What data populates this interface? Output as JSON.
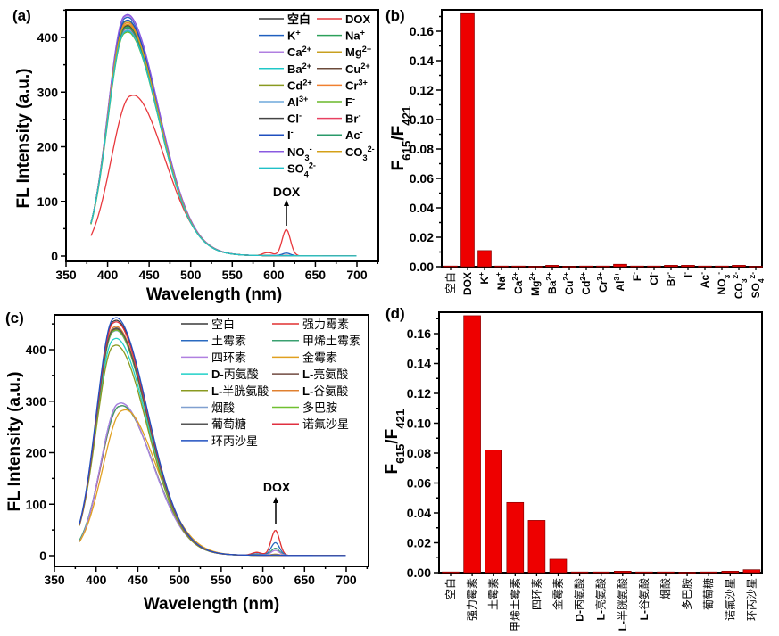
{
  "chart_data": [
    {
      "panel": "(a)",
      "type": "line",
      "xlabel": "Wavelength (nm)",
      "ylabel": "FL Intensity (a.u.)",
      "xlim": [
        350,
        725
      ],
      "ylim": [
        -10,
        460
      ],
      "xticks": [
        "350",
        "400",
        "450",
        "500",
        "550",
        "600",
        "650",
        "700"
      ],
      "yticks": [
        "0",
        "100",
        "200",
        "300",
        "400"
      ],
      "annotation": "DOX",
      "legend_position": "top-right",
      "series": [
        {
          "label": [
            {
              "t": "空白"
            }
          ],
          "color": "#3a3a3a",
          "peak_nm": 421,
          "peak": 421,
          "at380": 60,
          "f615": 0.2
        },
        {
          "label": [
            {
              "t": "DOX"
            }
          ],
          "color": "#e8383d",
          "peak_nm": 428,
          "peak": 293,
          "at380": 37,
          "f615": 48
        },
        {
          "label": [
            {
              "t": "K"
            },
            {
              "sup": "+"
            }
          ],
          "color": "#1f5fbf",
          "peak_nm": 421,
          "peak": 435,
          "at380": 60,
          "f615": 4.7
        },
        {
          "label": [
            {
              "t": "Na"
            },
            {
              "sup": "+"
            }
          ],
          "color": "#2ca05a",
          "peak_nm": 421,
          "peak": 418,
          "at380": 60,
          "f615": 0.2
        },
        {
          "label": [
            {
              "t": "Ca"
            },
            {
              "sup": "2+"
            }
          ],
          "color": "#b07fe0",
          "peak_nm": 421,
          "peak": 438,
          "at380": 60,
          "f615": 0.2
        },
        {
          "label": [
            {
              "t": "Mg"
            },
            {
              "sup": "2+"
            }
          ],
          "color": "#c8a020",
          "peak_nm": 421,
          "peak": 425,
          "at380": 60,
          "f615": 0.1
        },
        {
          "label": [
            {
              "t": "Ba"
            },
            {
              "sup": "2+"
            }
          ],
          "color": "#20c8c8",
          "peak_nm": 421,
          "peak": 410,
          "at380": 60,
          "f615": 0.4
        },
        {
          "label": [
            {
              "t": "Cu"
            },
            {
              "sup": "2+"
            }
          ],
          "color": "#6b4a3a",
          "peak_nm": 421,
          "peak": 420,
          "at380": 60,
          "f615": 0.1
        },
        {
          "label": [
            {
              "t": "Cd"
            },
            {
              "sup": "2+"
            }
          ],
          "color": "#8a9a20",
          "peak_nm": 421,
          "peak": 428,
          "at380": 60,
          "f615": 0.2
        },
        {
          "label": [
            {
              "t": "Cr"
            },
            {
              "sup": "3+"
            }
          ],
          "color": "#f08030",
          "peak_nm": 421,
          "peak": 425,
          "at380": 60,
          "f615": 0.2
        },
        {
          "label": [
            {
              "t": "Al"
            },
            {
              "sup": "3+"
            }
          ],
          "color": "#6fa8dc",
          "peak_nm": 421,
          "peak": 412,
          "at380": 60,
          "f615": 0.7
        },
        {
          "label": [
            {
              "t": "F"
            },
            {
              "sup": "-"
            }
          ],
          "color": "#6ab82a",
          "peak_nm": 421,
          "peak": 408,
          "at380": 58,
          "f615": 0.2
        },
        {
          "label": [
            {
              "t": "Cl"
            },
            {
              "sup": "-"
            }
          ],
          "color": "#444444",
          "peak_nm": 421,
          "peak": 420,
          "at380": 60,
          "f615": 0.2
        },
        {
          "label": [
            {
              "t": "Br"
            },
            {
              "sup": "-"
            }
          ],
          "color": "#e84060",
          "peak_nm": 421,
          "peak": 415,
          "at380": 60,
          "f615": 0.4
        },
        {
          "label": [
            {
              "t": "I"
            },
            {
              "sup": "-"
            }
          ],
          "color": "#1f4fbf",
          "peak_nm": 421,
          "peak": 430,
          "at380": 60,
          "f615": 0.4
        },
        {
          "label": [
            {
              "t": "Ac"
            },
            {
              "sup": "-"
            }
          ],
          "color": "#2a9a6a",
          "peak_nm": 421,
          "peak": 416,
          "at380": 60,
          "f615": 0.2
        },
        {
          "label": [
            {
              "t": "NO"
            },
            {
              "sub": "3"
            },
            {
              "sup": "-"
            }
          ],
          "color": "#8a5ae0",
          "peak_nm": 421,
          "peak": 440,
          "at380": 60,
          "f615": 0.2
        },
        {
          "label": [
            {
              "t": "CO"
            },
            {
              "sub": "3"
            },
            {
              "sup": "2-"
            }
          ],
          "color": "#d4a017",
          "peak_nm": 421,
          "peak": 422,
          "at380": 60,
          "f615": 0.4
        },
        {
          "label": [
            {
              "t": "SO"
            },
            {
              "sub": "4"
            },
            {
              "sup": "2-"
            }
          ],
          "color": "#20c0c8",
          "peak_nm": 421,
          "peak": 410,
          "at380": 60,
          "f615": 0.1
        }
      ]
    },
    {
      "panel": "(b)",
      "type": "bar",
      "ylabel": [
        {
          "t": "F"
        },
        {
          "sub": "615"
        },
        {
          "t": "/F"
        },
        {
          "sub": "421"
        }
      ],
      "ylim": [
        0,
        0.1745
      ],
      "yticks": [
        "0.00",
        "0.02",
        "0.04",
        "0.06",
        "0.08",
        "0.10",
        "0.12",
        "0.14",
        "0.16"
      ],
      "bar_color": "#ee0000",
      "categories": [
        [
          {
            "t": "空白",
            "cjk": true
          }
        ],
        [
          {
            "t": "DOX"
          }
        ],
        [
          {
            "t": "K"
          },
          {
            "sup": "+"
          }
        ],
        [
          {
            "t": "Na"
          },
          {
            "sup": "+"
          }
        ],
        [
          {
            "t": "Ca"
          },
          {
            "sup": "2+"
          }
        ],
        [
          {
            "t": "Mg"
          },
          {
            "sup": "2+"
          }
        ],
        [
          {
            "t": "Ba"
          },
          {
            "sup": "2+"
          }
        ],
        [
          {
            "t": "Cu"
          },
          {
            "sup": "2+"
          }
        ],
        [
          {
            "t": "Cd"
          },
          {
            "sup": "2+"
          }
        ],
        [
          {
            "t": "Cr"
          },
          {
            "sup": "3+"
          }
        ],
        [
          {
            "t": "Al"
          },
          {
            "sup": "3+"
          }
        ],
        [
          {
            "t": "F"
          },
          {
            "sup": "-"
          }
        ],
        [
          {
            "t": "Cl"
          },
          {
            "sup": "-"
          }
        ],
        [
          {
            "t": "Br"
          },
          {
            "sup": "-"
          }
        ],
        [
          {
            "t": "I"
          },
          {
            "sup": "-"
          }
        ],
        [
          {
            "t": "Ac"
          },
          {
            "sup": "-"
          }
        ],
        [
          {
            "t": "NO"
          },
          {
            "sub": "3"
          },
          {
            "sup": "-"
          }
        ],
        [
          {
            "t": "CO"
          },
          {
            "sub": "3"
          },
          {
            "sup": "2-"
          }
        ],
        [
          {
            "t": "SO"
          },
          {
            "sub": "4"
          },
          {
            "sup": "2-"
          }
        ]
      ],
      "values": [
        0.0005,
        0.172,
        0.011,
        0.0005,
        0.0005,
        0.0003,
        0.001,
        0.0003,
        0.0005,
        0.0005,
        0.0017,
        0.0005,
        0.0005,
        0.001,
        0.001,
        0.0005,
        0.0005,
        0.001,
        0.0003
      ]
    },
    {
      "panel": "(c)",
      "type": "line",
      "xlabel": "Wavelength (nm)",
      "ylabel": "FL Intensity (a.u.)",
      "xlim": [
        350,
        740
      ],
      "ylim": [
        -20,
        470
      ],
      "xticks": [
        "350",
        "400",
        "450",
        "500",
        "550",
        "600",
        "650",
        "700"
      ],
      "yticks": [
        "0",
        "100",
        "200",
        "300",
        "400"
      ],
      "annotation": "DOX",
      "legend_position": "top-right",
      "series": [
        {
          "label": [
            {
              "t": "空白",
              "cjk": true
            }
          ],
          "color": "#3a3a3a",
          "peak_nm": 421,
          "peak": 455,
          "at380": 60,
          "f615": 0.3
        },
        {
          "label": [
            {
              "t": "强力霉素",
              "cjk": true
            }
          ],
          "color": "#e03030",
          "peak_nm": 428,
          "peak": 290,
          "at380": 28,
          "f615": 49
        },
        {
          "label": [
            {
              "t": "土霉素",
              "cjk": true
            }
          ],
          "color": "#2a6ac0",
          "peak_nm": 427,
          "peak": 295,
          "at380": 27,
          "f615": 25
        },
        {
          "label": [
            {
              "t": "甲烯土霉素",
              "cjk": true
            }
          ],
          "color": "#3aa070",
          "peak_nm": 428,
          "peak": 290,
          "at380": 30,
          "f615": 14
        },
        {
          "label": [
            {
              "t": "四环素",
              "cjk": true
            }
          ],
          "color": "#b080e0",
          "peak_nm": 427,
          "peak": 295,
          "at380": 27,
          "f615": 10
        },
        {
          "label": [
            {
              "t": "金霉素",
              "cjk": true
            }
          ],
          "color": "#e0a020",
          "peak_nm": 432,
          "peak": 282,
          "at380": 27,
          "f615": 2.5
        },
        {
          "label": [
            {
              "t": "D-",
              "lat": true
            },
            {
              "t": "丙氨酸",
              "cjk": true
            }
          ],
          "color": "#20d0c8",
          "peak_nm": 421,
          "peak": 420,
          "at380": 60,
          "f615": 0.2
        },
        {
          "label": [
            {
              "t": "L-",
              "lat": true
            },
            {
              "t": "亮氨酸",
              "cjk": true
            }
          ],
          "color": "#704a40",
          "peak_nm": 421,
          "peak": 438,
          "at380": 60,
          "f615": 0.2
        },
        {
          "label": [
            {
              "t": "L-",
              "lat": true
            },
            {
              "t": "半胱氨酸",
              "cjk": true
            }
          ],
          "color": "#8a9a20",
          "peak_nm": 421,
          "peak": 407,
          "at380": 58,
          "f615": 0.4
        },
        {
          "label": [
            {
              "t": "L-",
              "lat": true
            },
            {
              "t": "谷氨酸",
              "cjk": true
            }
          ],
          "color": "#e08030",
          "peak_nm": 421,
          "peak": 443,
          "at380": 60,
          "f615": 0.2
        },
        {
          "label": [
            {
              "t": "烟酸",
              "cjk": true
            }
          ],
          "color": "#80a0d0",
          "peak_nm": 421,
          "peak": 435,
          "at380": 60,
          "f615": 0.2
        },
        {
          "label": [
            {
              "t": "多巴胺",
              "cjk": true
            }
          ],
          "color": "#70c030",
          "peak_nm": 421,
          "peak": 436,
          "at380": 60,
          "f615": 0.1
        },
        {
          "label": [
            {
              "t": "葡萄糖",
              "cjk": true
            }
          ],
          "color": "#555555",
          "peak_nm": 421,
          "peak": 440,
          "at380": 60,
          "f615": 0.2
        },
        {
          "label": [
            {
              "t": "诺氟沙星",
              "cjk": true
            }
          ],
          "color": "#e03040",
          "peak_nm": 421,
          "peak": 452,
          "at380": 60,
          "f615": 0.5
        },
        {
          "label": [
            {
              "t": "环丙沙星",
              "cjk": true
            }
          ],
          "color": "#2050c0",
          "peak_nm": 421,
          "peak": 460,
          "at380": 62,
          "f615": 0.9
        }
      ]
    },
    {
      "panel": "(d)",
      "type": "bar",
      "ylabel": [
        {
          "t": "F"
        },
        {
          "sub": "615"
        },
        {
          "t": "/F"
        },
        {
          "sub": "421"
        }
      ],
      "ylim": [
        0,
        0.1755
      ],
      "yticks": [
        "0.00",
        "0.02",
        "0.04",
        "0.06",
        "0.08",
        "0.10",
        "0.12",
        "0.14",
        "0.16"
      ],
      "bar_color": "#ee0000",
      "categories": [
        [
          {
            "t": "空白",
            "cjk": true
          }
        ],
        [
          {
            "t": "强力霉素",
            "cjk": true
          }
        ],
        [
          {
            "t": "土霉素",
            "cjk": true
          }
        ],
        [
          {
            "t": "甲烯土霉素",
            "cjk": true
          }
        ],
        [
          {
            "t": "四环素",
            "cjk": true
          }
        ],
        [
          {
            "t": "金霉素",
            "cjk": true
          }
        ],
        [
          {
            "t": "D-",
            "lat": true
          },
          {
            "t": "丙氨酸",
            "cjk": true
          }
        ],
        [
          {
            "t": "L-",
            "lat": true
          },
          {
            "t": "亮氨酸",
            "cjk": true
          }
        ],
        [
          {
            "t": "L-",
            "lat": true
          },
          {
            "t": "半胱氨酸",
            "cjk": true
          }
        ],
        [
          {
            "t": "L-",
            "lat": true
          },
          {
            "t": "谷氨酸",
            "cjk": true
          }
        ],
        [
          {
            "t": "烟酸",
            "cjk": true
          }
        ],
        [
          {
            "t": "多巴胺",
            "cjk": true
          }
        ],
        [
          {
            "t": "葡萄糖",
            "cjk": true
          }
        ],
        [
          {
            "t": "诺氟沙星",
            "cjk": true
          }
        ],
        [
          {
            "t": "环丙沙星",
            "cjk": true
          }
        ]
      ],
      "values": [
        0.0005,
        0.172,
        0.082,
        0.047,
        0.035,
        0.009,
        0.0005,
        0.0005,
        0.001,
        0.0005,
        0.0005,
        0.0003,
        0.0005,
        0.001,
        0.002
      ]
    }
  ]
}
